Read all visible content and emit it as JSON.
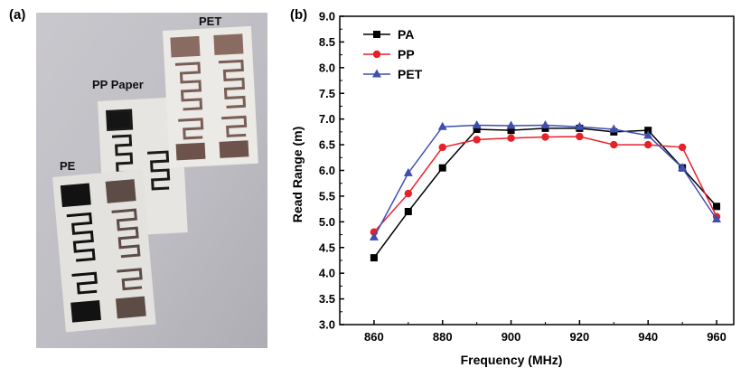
{
  "panels": {
    "a": "(a)",
    "b": "(b)"
  },
  "photo": {
    "labels": {
      "pet": "PET",
      "pp_paper": "PP Paper",
      "pe": "PE"
    }
  },
  "chart_data": {
    "type": "line",
    "xlabel": "Frequency (MHz)",
    "ylabel": "Read Range (m)",
    "x": [
      860,
      870,
      880,
      890,
      900,
      910,
      920,
      930,
      940,
      950,
      960
    ],
    "xlim": [
      850,
      965
    ],
    "ylim": [
      3.0,
      9.0
    ],
    "xticks": [
      860,
      880,
      900,
      920,
      940,
      960
    ],
    "yticks": [
      3.0,
      3.5,
      4.0,
      4.5,
      5.0,
      5.5,
      6.0,
      6.5,
      7.0,
      7.5,
      8.0,
      8.5,
      9.0
    ],
    "legend_position": "top-left",
    "grid": false,
    "series": [
      {
        "name": "PA",
        "color": "#000000",
        "marker": "square",
        "values": [
          4.3,
          5.2,
          6.05,
          6.8,
          6.78,
          6.82,
          6.82,
          6.75,
          6.78,
          6.05,
          5.3
        ]
      },
      {
        "name": "PP",
        "color": "#e8202a",
        "marker": "circle",
        "values": [
          4.8,
          5.55,
          6.45,
          6.6,
          6.63,
          6.65,
          6.66,
          6.5,
          6.5,
          6.45,
          5.1
        ]
      },
      {
        "name": "PET",
        "color": "#3e4fb0",
        "marker": "triangle",
        "values": [
          4.7,
          5.95,
          6.85,
          6.88,
          6.87,
          6.88,
          6.85,
          6.8,
          6.68,
          6.05,
          5.05
        ]
      }
    ]
  }
}
